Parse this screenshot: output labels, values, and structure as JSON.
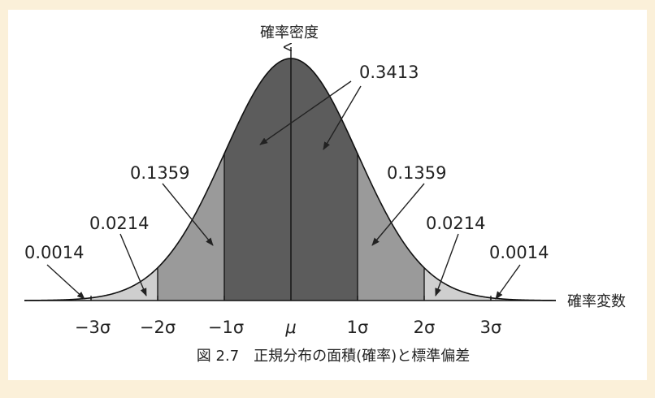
{
  "diagram": {
    "y_axis_label": "確率密度",
    "x_axis_label": "確率変数",
    "caption": "図 2.7　正規分布の面積(確率)と標準偏差",
    "ticks": [
      "−3σ",
      "−2σ",
      "−1σ",
      "μ",
      "1σ",
      "2σ",
      "3σ"
    ],
    "areas": {
      "center": "0.3413",
      "one_two_left": "0.1359",
      "one_two_right": "0.1359",
      "two_three_left": "0.0214",
      "two_three_right": "0.0214",
      "tail_left": "0.0014",
      "tail_right": "0.0014"
    },
    "colors": {
      "center_band": "#5c5c5c",
      "one_two_band": "#9a9a9a",
      "two_three_band": "#cfcfcf",
      "tail": "#e8e8e8",
      "page_background": "#fbf0d9"
    }
  }
}
